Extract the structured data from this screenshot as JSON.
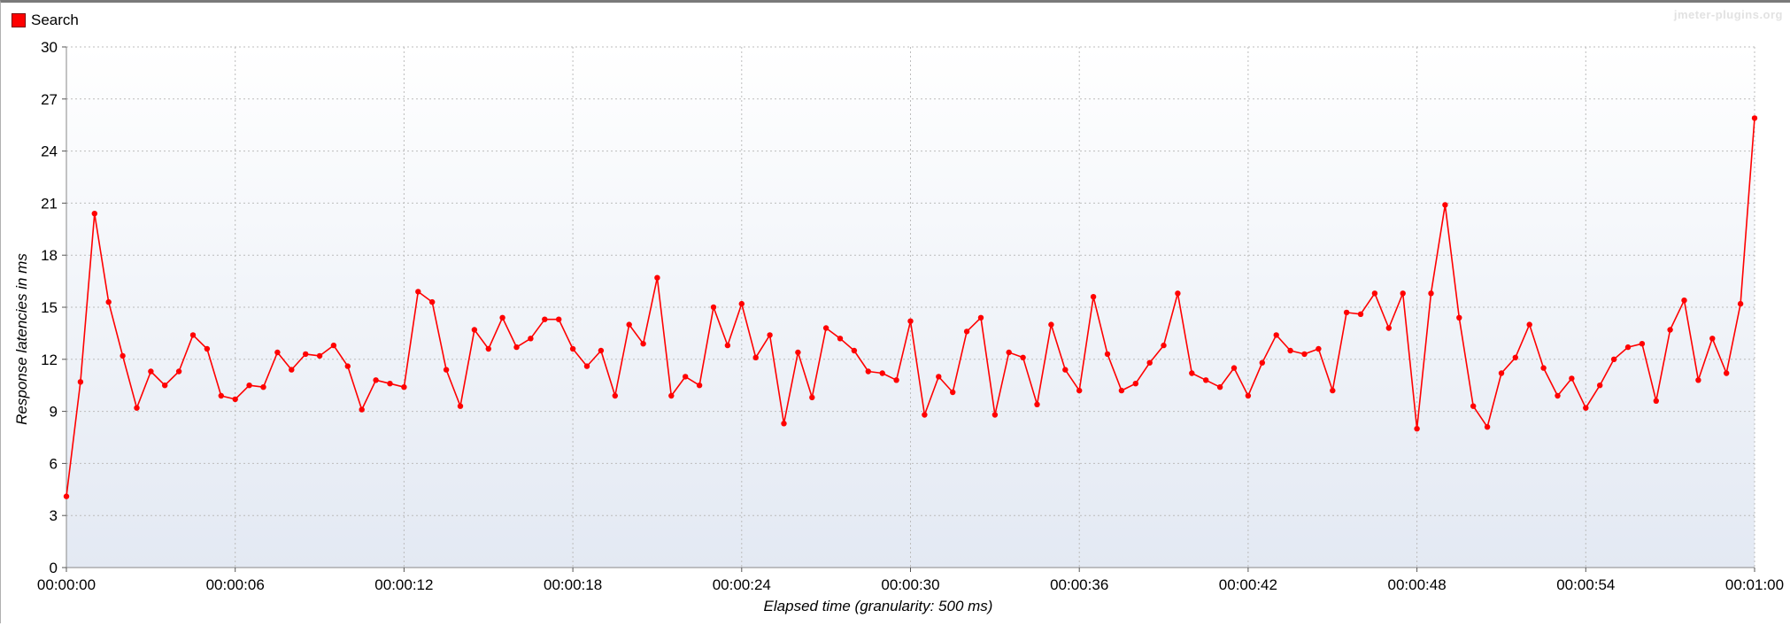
{
  "legend": {
    "label": "Search",
    "color": "#ff0000"
  },
  "watermark": "jmeter-plugins.org",
  "chart_data": {
    "type": "line",
    "title": "",
    "xlabel": "Elapsed time (granularity: 500 ms)",
    "ylabel": "Response latencies in ms",
    "ylim": [
      0,
      30
    ],
    "yticks": [
      0,
      3,
      6,
      9,
      12,
      15,
      18,
      21,
      24,
      27,
      30
    ],
    "xlim": [
      0,
      60
    ],
    "xticks": [
      0,
      6,
      12,
      18,
      24,
      30,
      36,
      42,
      48,
      54,
      60
    ],
    "xtick_labels": [
      "00:00:00",
      "00:00:06",
      "00:00:12",
      "00:00:18",
      "00:00:24",
      "00:00:30",
      "00:00:36",
      "00:00:42",
      "00:00:48",
      "00:00:54",
      "00:01:00"
    ],
    "grid": true,
    "legend_position": "top-left",
    "series": [
      {
        "name": "Search",
        "color": "#ff0000",
        "x": [
          0,
          0.5,
          1,
          1.5,
          2,
          2.5,
          3,
          3.5,
          4,
          4.5,
          5,
          5.5,
          6,
          6.5,
          7,
          7.5,
          8,
          8.5,
          9,
          9.5,
          10,
          10.5,
          11,
          11.5,
          12,
          12.5,
          13,
          13.5,
          14,
          14.5,
          15,
          15.5,
          16,
          16.5,
          17,
          17.5,
          18,
          18.5,
          19,
          19.5,
          20,
          20.5,
          21,
          21.5,
          22,
          22.5,
          23,
          23.5,
          24,
          24.5,
          25,
          25.5,
          26,
          26.5,
          27,
          27.5,
          28,
          28.5,
          29,
          29.5,
          30,
          30.5,
          31,
          31.5,
          32,
          32.5,
          33,
          33.5,
          34,
          34.5,
          35,
          35.5,
          36,
          36.5,
          37,
          37.5,
          38,
          38.5,
          39,
          39.5,
          40,
          40.5,
          41,
          41.5,
          42,
          42.5,
          43,
          43.5,
          44,
          44.5,
          45,
          45.5,
          46,
          46.5,
          47,
          47.5,
          48,
          48.5,
          49,
          49.5,
          50,
          50.5,
          51,
          51.5,
          52,
          52.5,
          53,
          53.5,
          54,
          54.5,
          55,
          55.5,
          56,
          56.5,
          57,
          57.5,
          58,
          58.5,
          59,
          59.5,
          60
        ],
        "y": [
          4.1,
          10.7,
          20.4,
          15.3,
          12.2,
          9.2,
          11.3,
          10.5,
          11.3,
          13.4,
          12.6,
          9.9,
          9.7,
          10.5,
          10.4,
          12.4,
          11.4,
          12.3,
          12.2,
          12.8,
          11.6,
          9.1,
          10.8,
          10.6,
          10.4,
          15.9,
          15.3,
          11.4,
          9.3,
          13.7,
          12.6,
          14.4,
          12.7,
          13.2,
          14.3,
          14.3,
          12.6,
          11.6,
          12.5,
          9.9,
          14.0,
          12.9,
          16.7,
          9.9,
          11.0,
          10.5,
          15.0,
          12.8,
          15.2,
          12.1,
          13.4,
          8.3,
          12.4,
          9.8,
          13.8,
          13.2,
          12.5,
          11.3,
          11.2,
          10.8,
          14.2,
          8.8,
          11.0,
          10.1,
          13.6,
          14.4,
          8.8,
          12.4,
          12.1,
          9.4,
          14.0,
          11.4,
          10.2,
          15.6,
          12.3,
          10.2,
          10.6,
          11.8,
          12.8,
          15.8,
          11.2,
          10.8,
          10.4,
          11.5,
          9.9,
          11.8,
          13.4,
          12.5,
          12.3,
          12.6,
          10.2,
          14.7,
          14.6,
          15.8,
          13.8,
          15.8,
          8.0,
          15.8,
          20.9,
          14.4,
          9.3,
          8.1,
          11.2,
          12.1,
          14.0,
          11.5,
          9.9,
          10.9,
          9.2,
          10.5,
          12.0,
          12.7,
          12.9,
          9.6,
          13.7,
          15.4,
          10.8,
          13.2,
          11.2,
          15.2,
          25.9
        ]
      }
    ]
  }
}
